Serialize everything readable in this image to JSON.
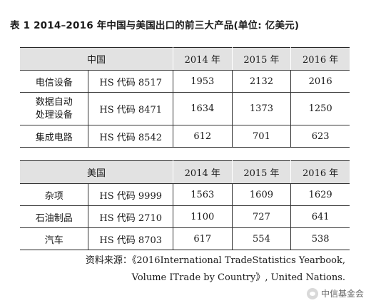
{
  "title": "表 1  2014–2016 年中国与美国出口的前三大产品(单位: 亿美元)",
  "tables": [
    {
      "header": [
        "中国",
        "2014 年",
        "2015 年",
        "2016 年"
      ],
      "rows": [
        {
          "name": [
            "电信设备"
          ],
          "code": "HS 代码 8517",
          "values": [
            "1953",
            "2132",
            "2016"
          ]
        },
        {
          "name": [
            "数据自动",
            "处理设备"
          ],
          "code": "HS 代码 8471",
          "values": [
            "1634",
            "1373",
            "1250"
          ]
        },
        {
          "name": [
            "集成电路"
          ],
          "code": "HS 代码 8542",
          "values": [
            "612",
            "701",
            "623"
          ]
        }
      ]
    },
    {
      "header": [
        "美国",
        "2014 年",
        "2015 年",
        "2016 年"
      ],
      "rows": [
        {
          "name": [
            "杂项"
          ],
          "code": "HS 代码 9999",
          "values": [
            "1563",
            "1609",
            "1629"
          ]
        },
        {
          "name": [
            "石油制品"
          ],
          "code": "HS 代码 2710",
          "values": [
            "1100",
            "727",
            "641"
          ]
        },
        {
          "name": [
            "汽车"
          ],
          "code": "HS 代码 8703",
          "values": [
            "617",
            "554",
            "538"
          ]
        }
      ]
    }
  ],
  "source": {
    "line1": "资料来源：《2016International TradeStatistics Yearbook,",
    "line2": "Volume ITrade by Country》, United Nations."
  },
  "watermark": {
    "text": "中信基金会",
    "icon": "wechat-icon"
  }
}
